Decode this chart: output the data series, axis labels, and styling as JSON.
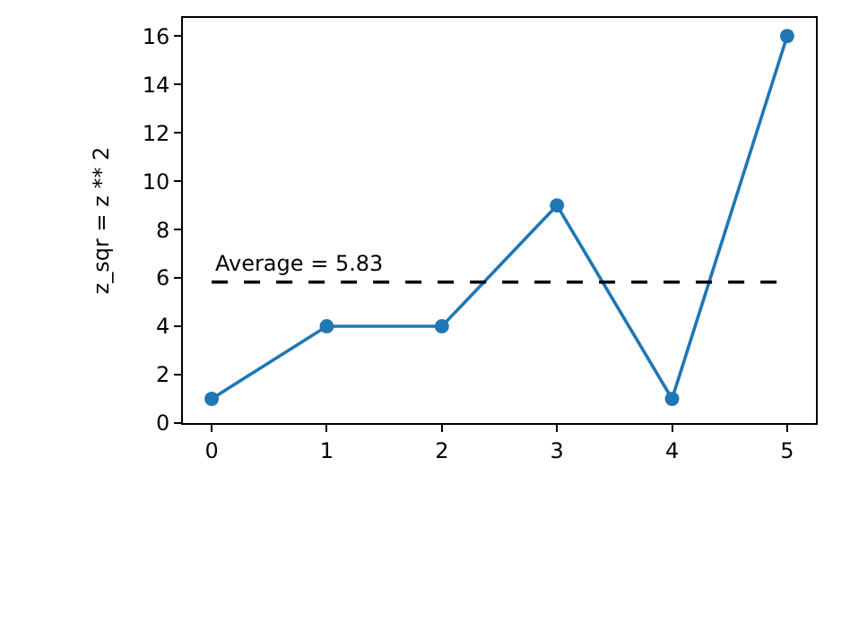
{
  "chart_data": {
    "type": "line",
    "ylabel": "z_sqr = z ** 2",
    "x": [
      0,
      1,
      2,
      3,
      4,
      5
    ],
    "series": [
      {
        "color": "#1f77b4",
        "values": [
          1,
          4,
          4,
          9,
          1,
          16
        ]
      }
    ],
    "xlim": [
      -0.25,
      5.25
    ],
    "xticks": [
      0,
      1,
      2,
      3,
      4,
      5
    ],
    "ylim": [
      0,
      16.75
    ],
    "yticks": [
      0,
      2,
      4,
      6,
      8,
      10,
      12,
      14,
      16
    ],
    "marker": "circle",
    "line_style": "solid",
    "ref_lines": [
      {
        "axis": "y",
        "value": 5.83,
        "label": "Average = 5.83",
        "color": "#000000",
        "line_style": "dashed"
      }
    ]
  }
}
